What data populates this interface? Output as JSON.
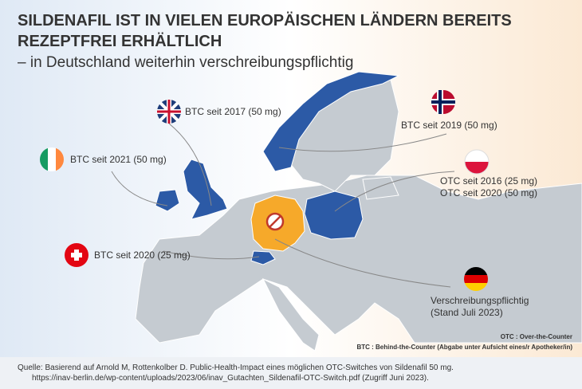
{
  "header": {
    "title": [
      "SILDENAFIL IST IN VIELEN EUROPÄISCHEN LÄNDERN BEREITS",
      "REZEPTFREI ERHÄLTLICH"
    ],
    "subtitle": "– in Deutschland weiterhin verschreibungspflichtig"
  },
  "countries": [
    {
      "label": [
        "BTC seit 2017 (50 mg)"
      ]
    },
    {
      "label": [
        "BTC seit 2019 (50 mg)"
      ]
    },
    {
      "label": [
        "BTC seit 2021 (50 mg)"
      ]
    },
    {
      "label": [
        "OTC seit 2016 (25 mg)",
        "OTC seit 2020 (50 mg)"
      ]
    },
    {
      "label": [
        "BTC seit 2020 (25 mg)"
      ]
    },
    {
      "label": [
        "Verschreibungspflichtig",
        "(Stand Juli 2023)"
      ]
    }
  ],
  "legend": [
    "OTC : Over-the-Counter",
    "BTC : Behind-the-Counter (Abgabe unter Aufsicht eines/r Apotheker/in)"
  ],
  "source": [
    "Quelle: Basierend auf Arnold M, Rottenkolber D. Public-Health-Impact eines möglichen OTC-Switches von Sildenafil 50 mg.",
    "https://inav-berlin.de/wp-content/uploads/2023/06/inav_Gutachten_Sildenafil-OTC-Switch.pdf (Zugriff Juni 2023)."
  ]
}
